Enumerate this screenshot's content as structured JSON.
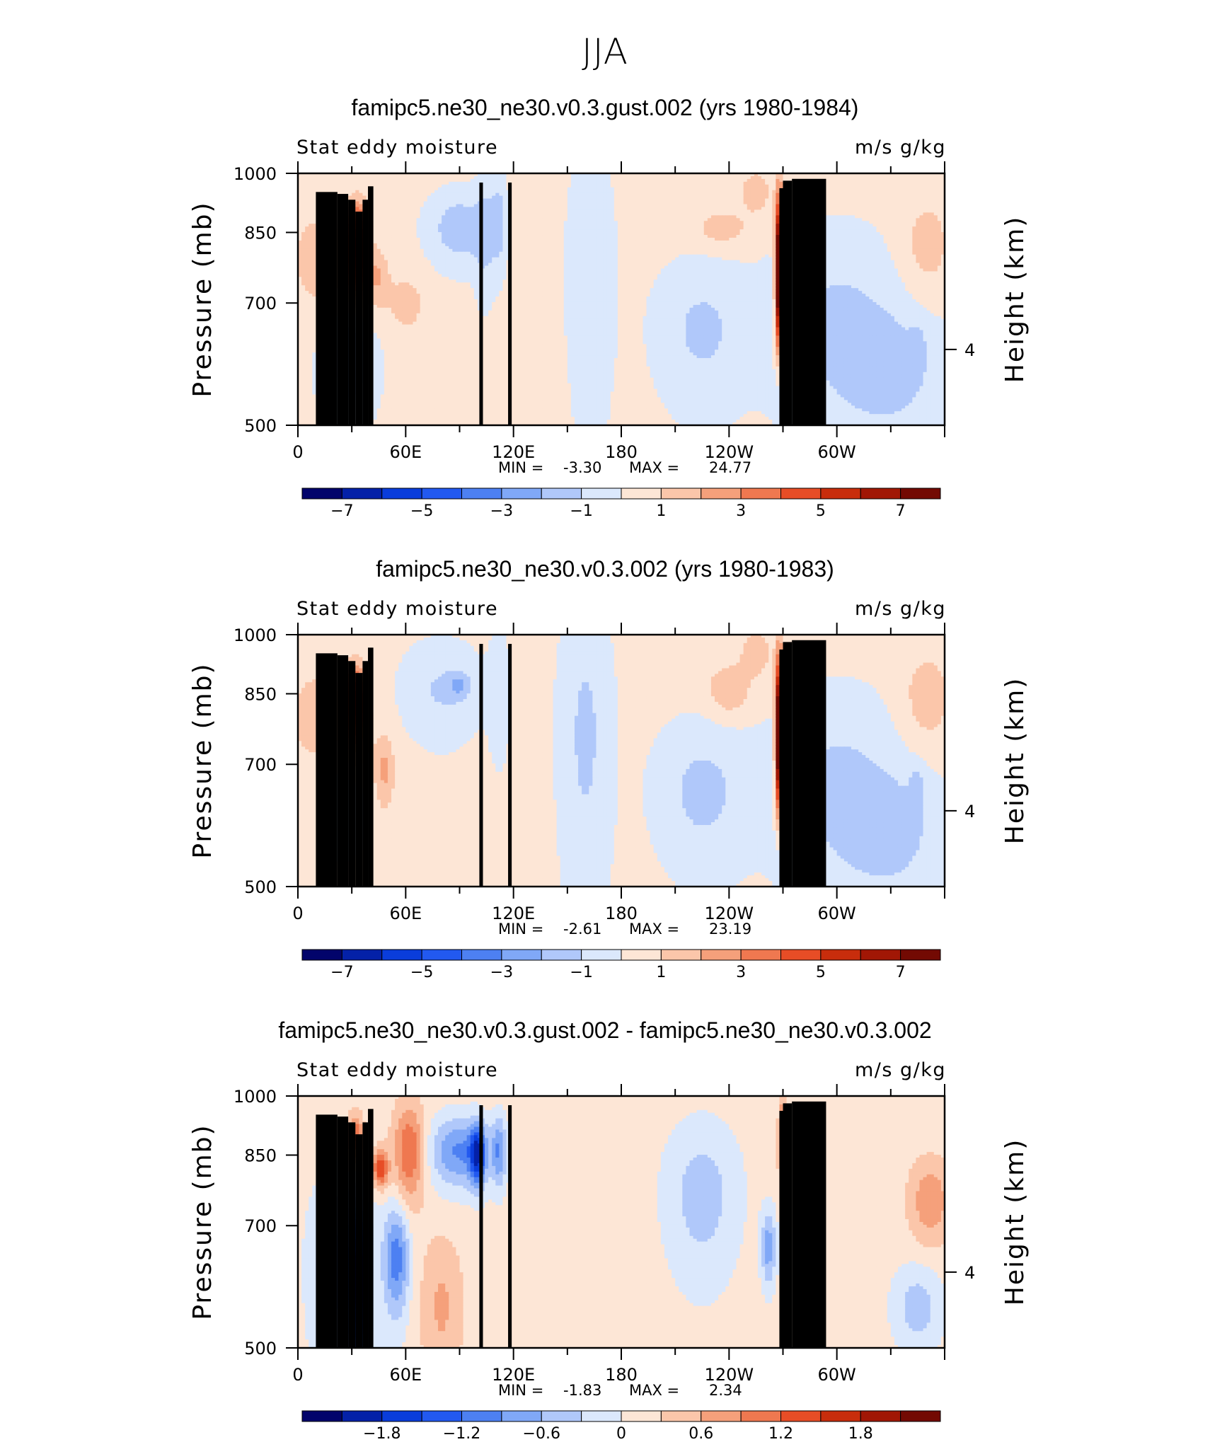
{
  "title": "JJA",
  "chart_data": [
    {
      "type": "heatmap",
      "title": "famipc5.ne30_ne30.v0.3.gust.002 (yrs 1980-1984)",
      "left_string": "Stat eddy moisture",
      "right_string": "m/s g/kg",
      "ylabel": "Pressure (mb)",
      "ylabel_right": "Height (km)",
      "yticks": [
        "500",
        "700",
        "850",
        "1000"
      ],
      "right_ticks": [
        "4"
      ],
      "xticks": [
        "0",
        "60E",
        "120E",
        "180",
        "120W",
        "60W"
      ],
      "x_range": [
        0,
        360
      ],
      "ylim": [
        1000,
        500
      ],
      "stats": {
        "min_label": "MIN =",
        "min": "-3.30",
        "max_label": "MAX =",
        "max": "24.77"
      },
      "colorbar": {
        "levels": [
          "-7",
          "-5",
          "-3",
          "-1",
          "1",
          "3",
          "5",
          "7"
        ]
      },
      "features": [
        {
          "lon": 33,
          "p": 835,
          "v": 6.5,
          "sx": 4,
          "sp": 55
        },
        {
          "lon": 33,
          "p": 760,
          "v": 3,
          "sx": 5,
          "sp": 50
        },
        {
          "lon": 12,
          "p": 790,
          "v": 1.5,
          "sx": 10,
          "sp": 70
        },
        {
          "lon": 45,
          "p": 750,
          "v": 1.6,
          "sx": 4,
          "sp": 40
        },
        {
          "lon": 60,
          "p": 700,
          "v": 1.2,
          "sx": 8,
          "sp": 40
        },
        {
          "lon": 28,
          "p": 590,
          "v": -1.3,
          "sx": 12,
          "sp": 70
        },
        {
          "lon": 30,
          "p": 620,
          "v": -1.0,
          "sx": 4,
          "sp": 60
        },
        {
          "lon": 90,
          "p": 860,
          "v": -2.0,
          "sx": 12,
          "sp": 60
        },
        {
          "lon": 104,
          "p": 840,
          "v": -1.2,
          "sx": 4,
          "sp": 100
        },
        {
          "lon": 112,
          "p": 880,
          "v": -1.6,
          "sx": 3,
          "sp": 80
        },
        {
          "lon": 163,
          "p": 760,
          "v": -1.2,
          "sx": 9,
          "sp": 200
        },
        {
          "lon": 225,
          "p": 650,
          "v": -1.5,
          "sx": 18,
          "sp": 90
        },
        {
          "lon": 236,
          "p": 860,
          "v": 1.4,
          "sx": 10,
          "sp": 30
        },
        {
          "lon": 268,
          "p": 760,
          "v": 11,
          "sx": 1.5,
          "sp": 120
        },
        {
          "lon": 268,
          "p": 560,
          "v": -2.5,
          "sx": 1.4,
          "sp": 60
        },
        {
          "lon": 300,
          "p": 660,
          "v": -1.5,
          "sx": 25,
          "sp": 130
        },
        {
          "lon": 335,
          "p": 580,
          "v": -1.3,
          "sx": 20,
          "sp": 80
        },
        {
          "lon": 345,
          "p": 620,
          "v": -0.8,
          "sx": 3,
          "sp": 30
        },
        {
          "lon": 350,
          "p": 820,
          "v": 1.2,
          "sx": 10,
          "sp": 80
        },
        {
          "lon": 255,
          "p": 950,
          "v": 1.4,
          "sx": 6,
          "sp": 40
        }
      ]
    },
    {
      "type": "heatmap",
      "title": "famipc5.ne30_ne30.v0.3.002 (yrs 1980-1983)",
      "left_string": "Stat eddy moisture",
      "right_string": "m/s g/kg",
      "ylabel": "Pressure (mb)",
      "ylabel_right": "Height (km)",
      "yticks": [
        "500",
        "700",
        "850",
        "1000"
      ],
      "right_ticks": [
        "4"
      ],
      "xticks": [
        "0",
        "60E",
        "120E",
        "180",
        "120W",
        "60W"
      ],
      "x_range": [
        0,
        360
      ],
      "ylim": [
        1000,
        500
      ],
      "stats": {
        "min_label": "MIN =",
        "min": "-2.61",
        "max_label": "MAX =",
        "max": "23.19"
      },
      "colorbar": {
        "levels": [
          "-7",
          "-5",
          "-3",
          "-1",
          "1",
          "3",
          "5",
          "7"
        ]
      },
      "features": [
        {
          "lon": 32,
          "p": 845,
          "v": 5.5,
          "sx": 4,
          "sp": 50
        },
        {
          "lon": 32,
          "p": 770,
          "v": 2.5,
          "sx": 5,
          "sp": 50
        },
        {
          "lon": 10,
          "p": 800,
          "v": 1.4,
          "sx": 10,
          "sp": 70
        },
        {
          "lon": 48,
          "p": 690,
          "v": 2.0,
          "sx": 4,
          "sp": 50
        },
        {
          "lon": 25,
          "p": 620,
          "v": -0.9,
          "sx": 10,
          "sp": 60
        },
        {
          "lon": 80,
          "p": 860,
          "v": -1.4,
          "sx": 15,
          "sp": 80
        },
        {
          "lon": 90,
          "p": 870,
          "v": -1.7,
          "sx": 4,
          "sp": 20
        },
        {
          "lon": 112,
          "p": 850,
          "v": -1.1,
          "sx": 4,
          "sp": 100
        },
        {
          "lon": 160,
          "p": 760,
          "v": -1.5,
          "sx": 10,
          "sp": 220
        },
        {
          "lon": 225,
          "p": 650,
          "v": -1.6,
          "sx": 18,
          "sp": 90
        },
        {
          "lon": 240,
          "p": 860,
          "v": 1.8,
          "sx": 8,
          "sp": 40
        },
        {
          "lon": 268,
          "p": 760,
          "v": 11,
          "sx": 1.5,
          "sp": 120
        },
        {
          "lon": 268,
          "p": 560,
          "v": -2.3,
          "sx": 1.4,
          "sp": 60
        },
        {
          "lon": 300,
          "p": 660,
          "v": -1.5,
          "sx": 25,
          "sp": 130
        },
        {
          "lon": 335,
          "p": 580,
          "v": -1.3,
          "sx": 20,
          "sp": 80
        },
        {
          "lon": 345,
          "p": 660,
          "v": -1.0,
          "sx": 3,
          "sp": 30
        },
        {
          "lon": 350,
          "p": 840,
          "v": 1.3,
          "sx": 10,
          "sp": 80
        },
        {
          "lon": 255,
          "p": 950,
          "v": 1.5,
          "sx": 6,
          "sp": 40
        }
      ]
    },
    {
      "type": "heatmap",
      "title": "famipc5.ne30_ne30.v0.3.gust.002 - famipc5.ne30_ne30.v0.3.002",
      "left_string": "Stat eddy moisture",
      "right_string": "m/s g/kg",
      "ylabel": "Pressure (mb)",
      "ylabel_right": "Height (km)",
      "yticks": [
        "500",
        "700",
        "850",
        "1000"
      ],
      "right_ticks": [
        "4"
      ],
      "xticks": [
        "0",
        "60E",
        "120E",
        "180",
        "120W",
        "60W"
      ],
      "x_range": [
        0,
        360
      ],
      "ylim": [
        1000,
        500
      ],
      "stats": {
        "min_label": "MIN =",
        "min": "-1.83",
        "max_label": "MAX =",
        "max": "2.34"
      },
      "colorbar": {
        "levels": [
          "-1.8",
          "-1.2",
          "-0.6",
          "0",
          "0.6",
          "1.2",
          "1.8"
        ]
      },
      "features": [
        {
          "lon": 34,
          "p": 600,
          "v": -1.9,
          "sx": 3.5,
          "sp": 90
        },
        {
          "lon": 25,
          "p": 620,
          "v": -0.9,
          "sx": 12,
          "sp": 120
        },
        {
          "lon": 55,
          "p": 640,
          "v": -1.2,
          "sx": 5,
          "sp": 70
        },
        {
          "lon": 32,
          "p": 890,
          "v": 1.2,
          "sx": 3,
          "sp": 40
        },
        {
          "lon": 46,
          "p": 820,
          "v": 1.4,
          "sx": 3,
          "sp": 30
        },
        {
          "lon": 62,
          "p": 860,
          "v": 1.1,
          "sx": 6,
          "sp": 80
        },
        {
          "lon": 90,
          "p": 860,
          "v": -1.1,
          "sx": 12,
          "sp": 60
        },
        {
          "lon": 100,
          "p": 850,
          "v": -1.5,
          "sx": 3,
          "sp": 50
        },
        {
          "lon": 112,
          "p": 860,
          "v": -0.9,
          "sx": 3,
          "sp": 60
        },
        {
          "lon": 270,
          "p": 880,
          "v": 2.0,
          "sx": 1.5,
          "sp": 60
        },
        {
          "lon": 225,
          "p": 760,
          "v": -0.6,
          "sx": 15,
          "sp": 120
        },
        {
          "lon": 262,
          "p": 660,
          "v": -0.9,
          "sx": 3,
          "sp": 50
        },
        {
          "lon": 352,
          "p": 750,
          "v": 0.7,
          "sx": 8,
          "sp": 60
        },
        {
          "lon": 345,
          "p": 560,
          "v": -0.6,
          "sx": 10,
          "sp": 50
        },
        {
          "lon": 80,
          "p": 560,
          "v": 0.5,
          "sx": 8,
          "sp": 80
        }
      ]
    }
  ]
}
